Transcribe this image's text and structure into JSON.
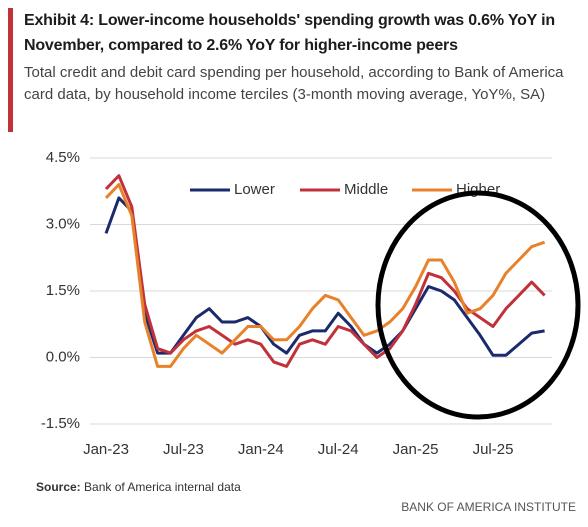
{
  "chart_data": {
    "type": "line",
    "title": "Exhibit 4: Lower-income households' spending growth was 0.6% YoY in November, compared to 2.6% YoY for higher-income peers",
    "subtitle": "Total credit and debit card spending per household, according to Bank of America card data, by household income terciles (3-month moving average, YoY%, SA)",
    "categories": [
      "Jan-23",
      null,
      null,
      null,
      null,
      null,
      "Jul-23",
      null,
      null,
      null,
      null,
      null,
      "Jan-24",
      null,
      null,
      null,
      null,
      null,
      "Jul-24",
      null,
      null,
      null,
      null,
      null,
      "Jan-25",
      null,
      null,
      null,
      null,
      null,
      "Jul-25",
      null,
      null,
      null,
      null
    ],
    "series": [
      {
        "name": "Lower",
        "color": "#1a2a6c",
        "values": [
          2.8,
          3.6,
          3.3,
          1.0,
          0.1,
          0.1,
          0.5,
          0.9,
          1.1,
          0.8,
          0.8,
          0.9,
          0.7,
          0.3,
          0.1,
          0.5,
          0.6,
          0.6,
          1.0,
          0.7,
          0.3,
          0.1,
          0.3,
          0.6,
          1.1,
          1.6,
          1.5,
          1.3,
          0.9,
          0.5,
          0.05,
          0.05,
          0.3,
          0.55,
          0.6
        ]
      },
      {
        "name": "Middle",
        "color": "#c0313a",
        "values": [
          3.8,
          4.1,
          3.4,
          1.2,
          0.2,
          0.1,
          0.4,
          0.6,
          0.7,
          0.5,
          0.3,
          0.4,
          0.3,
          -0.1,
          -0.2,
          0.3,
          0.4,
          0.3,
          0.7,
          0.6,
          0.3,
          0.0,
          0.2,
          0.6,
          1.2,
          1.9,
          1.8,
          1.5,
          1.1,
          0.9,
          0.7,
          1.1,
          1.4,
          1.7,
          1.4
        ]
      },
      {
        "name": "Higher",
        "color": "#e8822a",
        "values": [
          3.6,
          3.9,
          3.2,
          0.8,
          -0.2,
          -0.2,
          0.2,
          0.5,
          0.3,
          0.1,
          0.4,
          0.7,
          0.7,
          0.4,
          0.4,
          0.7,
          1.1,
          1.4,
          1.3,
          0.9,
          0.5,
          0.6,
          0.8,
          1.1,
          1.6,
          2.2,
          2.2,
          1.7,
          1.0,
          1.1,
          1.4,
          1.9,
          2.2,
          2.5,
          2.6
        ]
      }
    ],
    "ylim": [
      -1.5,
      4.5
    ],
    "yticks": [
      {
        "value": -1.5,
        "label": "-1.5%"
      },
      {
        "value": 0,
        "label": "0.0%"
      },
      {
        "value": 1.5,
        "label": "1.5%"
      },
      {
        "value": 3,
        "label": "3.0%"
      },
      {
        "value": 4.5,
        "label": "4.5%"
      }
    ],
    "grid": true,
    "legend": "top",
    "source_label": "Source:",
    "source": "Bank of America internal data",
    "brand": "BANK OF AMERICA INSTITUTE"
  }
}
